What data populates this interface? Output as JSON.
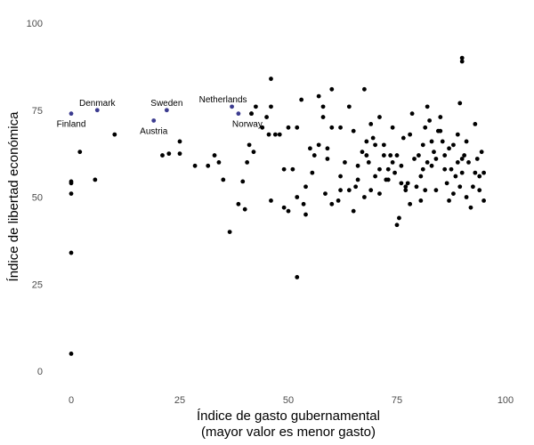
{
  "chart_data": {
    "type": "scatter",
    "title": "",
    "xlabel_lines": [
      "Índice de gasto gubernamental",
      "(mayor valor es menor gasto)"
    ],
    "ylabel": "Índice de libertad económica",
    "xlim": [
      -5,
      100
    ],
    "ylim": [
      -3,
      100
    ],
    "xticks": [
      0,
      25,
      50,
      75,
      100
    ],
    "yticks": [
      0,
      25,
      50,
      75,
      100
    ],
    "xtick_labels": [
      "0",
      "25",
      "50",
      "75",
      "100"
    ],
    "ytick_labels": [
      "0",
      "25",
      "50",
      "75",
      "100"
    ],
    "grid": false,
    "colors": {
      "default_point": "#000000",
      "highlight_point": "#3b3b8f"
    },
    "highlighted": [
      {
        "name": "Finland",
        "x": 0,
        "y": 74,
        "label_pos": "below"
      },
      {
        "name": "Denmark",
        "x": 6,
        "y": 75,
        "label_pos": "above"
      },
      {
        "name": "Austria",
        "x": 19,
        "y": 72,
        "label_pos": "below"
      },
      {
        "name": "Sweden",
        "x": 22,
        "y": 75,
        "label_pos": "above"
      },
      {
        "name": "Netherlands",
        "x": 37,
        "y": 76,
        "label_pos": "above"
      },
      {
        "name": "Norway",
        "x": 38.5,
        "y": 74,
        "label_pos": "below"
      }
    ],
    "points": [
      [
        0,
        5
      ],
      [
        0,
        34
      ],
      [
        0,
        51
      ],
      [
        0,
        54
      ],
      [
        0,
        54.5
      ],
      [
        2,
        63
      ],
      [
        5.5,
        55
      ],
      [
        10,
        68
      ],
      [
        21,
        62
      ],
      [
        22.5,
        62.5
      ],
      [
        25,
        62.5
      ],
      [
        25,
        66
      ],
      [
        28.5,
        59
      ],
      [
        31.5,
        59
      ],
      [
        33,
        62
      ],
      [
        34,
        60
      ],
      [
        35,
        55
      ],
      [
        36.5,
        40
      ],
      [
        38.5,
        48
      ],
      [
        39.5,
        54.5
      ],
      [
        40,
        46.5
      ],
      [
        40.5,
        60
      ],
      [
        41,
        65
      ],
      [
        41.5,
        74
      ],
      [
        41.5,
        74
      ],
      [
        42,
        63
      ],
      [
        42.5,
        76
      ],
      [
        44,
        70
      ],
      [
        45,
        73
      ],
      [
        45.5,
        68
      ],
      [
        46,
        76
      ],
      [
        46,
        84
      ],
      [
        46,
        49
      ],
      [
        47,
        68
      ],
      [
        48,
        68
      ],
      [
        49,
        58
      ],
      [
        49,
        47
      ],
      [
        50,
        70
      ],
      [
        50,
        46
      ],
      [
        51,
        58
      ],
      [
        52,
        50
      ],
      [
        52,
        27
      ],
      [
        52,
        70
      ],
      [
        53,
        78
      ],
      [
        53.5,
        48
      ],
      [
        54,
        53
      ],
      [
        54,
        45
      ],
      [
        55,
        64
      ],
      [
        55.5,
        57
      ],
      [
        56,
        62
      ],
      [
        57,
        79
      ],
      [
        57,
        65
      ],
      [
        58,
        73
      ],
      [
        58,
        76
      ],
      [
        58.5,
        51
      ],
      [
        59,
        61
      ],
      [
        59,
        64
      ],
      [
        60,
        70
      ],
      [
        60,
        81
      ],
      [
        60,
        48
      ],
      [
        61.5,
        49
      ],
      [
        62,
        56
      ],
      [
        62,
        70
      ],
      [
        62,
        52
      ],
      [
        63,
        60
      ],
      [
        64,
        52
      ],
      [
        64,
        76
      ],
      [
        65,
        69
      ],
      [
        65,
        46
      ],
      [
        65.5,
        53
      ],
      [
        66,
        59
      ],
      [
        66,
        55
      ],
      [
        67,
        63
      ],
      [
        67.5,
        81
      ],
      [
        67.5,
        50
      ],
      [
        68,
        66
      ],
      [
        68,
        62
      ],
      [
        68.5,
        60
      ],
      [
        69,
        52
      ],
      [
        69,
        71
      ],
      [
        69.5,
        67
      ],
      [
        70,
        56
      ],
      [
        70,
        65
      ],
      [
        71,
        58
      ],
      [
        71,
        73
      ],
      [
        71,
        51
      ],
      [
        72,
        62
      ],
      [
        72,
        65
      ],
      [
        72.5,
        55
      ],
      [
        73,
        55
      ],
      [
        73,
        58
      ],
      [
        73.5,
        62
      ],
      [
        74,
        60
      ],
      [
        74,
        70
      ],
      [
        74.5,
        57
      ],
      [
        75,
        62
      ],
      [
        75,
        42
      ],
      [
        75.5,
        44
      ],
      [
        76,
        54
      ],
      [
        76,
        59
      ],
      [
        76.5,
        67
      ],
      [
        77,
        53
      ],
      [
        77,
        52
      ],
      [
        77.5,
        54
      ],
      [
        78,
        68
      ],
      [
        78,
        48
      ],
      [
        78.5,
        74
      ],
      [
        79,
        61
      ],
      [
        79.5,
        53
      ],
      [
        80,
        62
      ],
      [
        80.5,
        56
      ],
      [
        80.5,
        49
      ],
      [
        81,
        58
      ],
      [
        81,
        65
      ],
      [
        81.5,
        70
      ],
      [
        81.5,
        52
      ],
      [
        82,
        76
      ],
      [
        82,
        60
      ],
      [
        82.5,
        72
      ],
      [
        83,
        66
      ],
      [
        83,
        59
      ],
      [
        83.5,
        63
      ],
      [
        84,
        52
      ],
      [
        84,
        61
      ],
      [
        84.5,
        69
      ],
      [
        85,
        73
      ],
      [
        85,
        69
      ],
      [
        85.5,
        66
      ],
      [
        86,
        58
      ],
      [
        86,
        62
      ],
      [
        86.5,
        54
      ],
      [
        87,
        64
      ],
      [
        87,
        49
      ],
      [
        87.5,
        58
      ],
      [
        88,
        51
      ],
      [
        88,
        65
      ],
      [
        88.5,
        56
      ],
      [
        89,
        60
      ],
      [
        89,
        68
      ],
      [
        89.5,
        53
      ],
      [
        89.5,
        77
      ],
      [
        90,
        57
      ],
      [
        90,
        61
      ],
      [
        90,
        90
      ],
      [
        90,
        89
      ],
      [
        90.5,
        62
      ],
      [
        91,
        66
      ],
      [
        91,
        50
      ],
      [
        91.5,
        60
      ],
      [
        92,
        47
      ],
      [
        92.5,
        53
      ],
      [
        93,
        71
      ],
      [
        93,
        57
      ],
      [
        93.5,
        61
      ],
      [
        94,
        52
      ],
      [
        94,
        56
      ],
      [
        94.5,
        63
      ],
      [
        95,
        49
      ],
      [
        95,
        57
      ]
    ]
  }
}
